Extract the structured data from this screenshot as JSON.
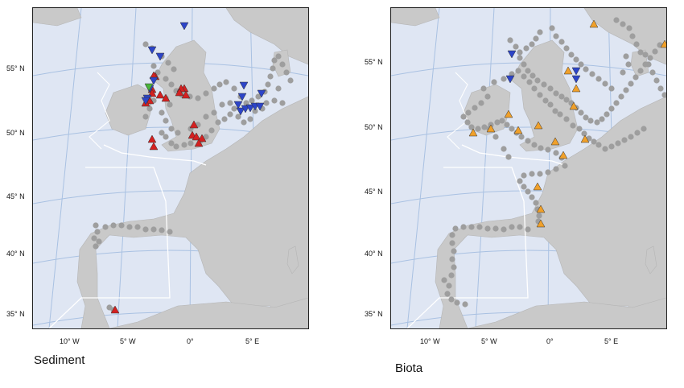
{
  "colors": {
    "sea": "#dfe6f3",
    "land": "#c9c9c9",
    "graticule": "#a9c1e2",
    "boundary": "#ffffff",
    "station": "#9e9e9e",
    "increase_red": "#d42020",
    "decrease_blue": "#2c44c8",
    "green": "#49b43a",
    "orange": "#f0a02a"
  },
  "panels": [
    {
      "caption": "Sediment",
      "lat_labels": [
        "55° N",
        "50° N",
        "45° N",
        "40° N",
        "35° N"
      ],
      "lon_labels": [
        "10° W",
        "5° W",
        "0°",
        "5° E"
      ]
    },
    {
      "caption": "Biota",
      "lat_labels": [
        "55° N",
        "50° N",
        "45° N",
        "40° N",
        "35° N"
      ],
      "lon_labels": [
        "10° W",
        "5° W",
        "0°",
        "5° E"
      ]
    }
  ],
  "icons": {
    "station": "grey-dot",
    "up_triangle": "triangle-up",
    "down_triangle": "triangle-down"
  }
}
